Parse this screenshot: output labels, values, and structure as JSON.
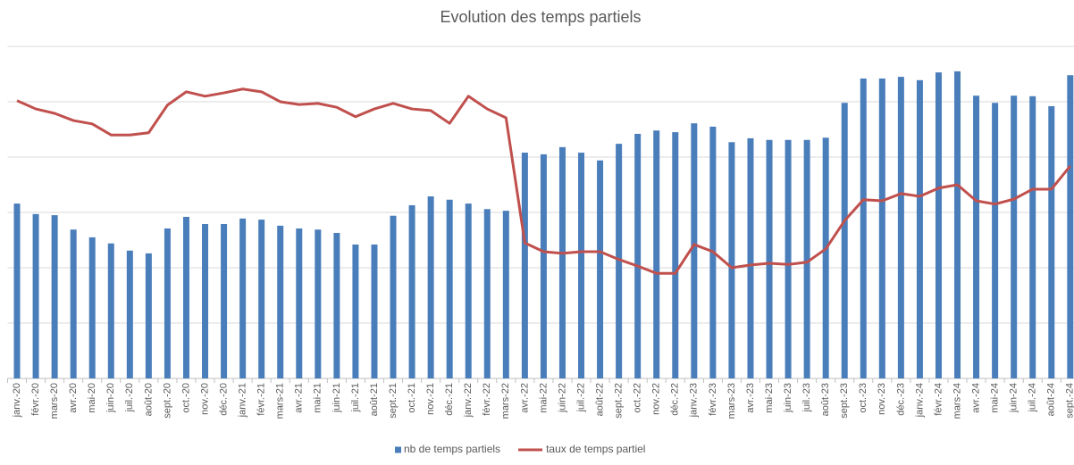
{
  "chart_data": {
    "type": "bar_line",
    "title": "Evolution des temps partiels",
    "categories": [
      "janv.-20",
      "févr.-20",
      "mars-20",
      "avr.-20",
      "mai-20",
      "juin-20",
      "juil.-20",
      "août-20",
      "sept.-20",
      "oct.-20",
      "nov.-20",
      "déc.-20",
      "janv.-21",
      "févr.-21",
      "mars-21",
      "avr.-21",
      "mai-21",
      "juin-21",
      "juil.-21",
      "août-21",
      "sept.-21",
      "oct.-21",
      "nov.-21",
      "déc.-21",
      "janv.-22",
      "févr.-22",
      "mars-22",
      "avr.-22",
      "mai-22",
      "juin-22",
      "juil.-22",
      "août-22",
      "sept.-22",
      "oct.-22",
      "nov.-22",
      "déc.-22",
      "janv.-23",
      "févr.-23",
      "mars-23",
      "avr.-23",
      "mai-23",
      "juin-23",
      "juil.-23",
      "août-23",
      "sept.-23",
      "oct.-23",
      "nov.-23",
      "déc.-23",
      "janv.-24",
      "févr.-24",
      "mars-24",
      "avr.-24",
      "mai-24",
      "juin-24",
      "juil.-24",
      "août-24",
      "sept.-24"
    ],
    "series": [
      {
        "name": "nb de temps partiels",
        "type": "bar",
        "color": "#4a7ebb",
        "values": [
          3.16,
          2.97,
          2.95,
          2.69,
          2.55,
          2.44,
          2.31,
          2.26,
          2.71,
          2.92,
          2.79,
          2.79,
          2.89,
          2.87,
          2.76,
          2.71,
          2.69,
          2.63,
          2.42,
          2.42,
          2.94,
          3.13,
          3.29,
          3.23,
          3.16,
          3.06,
          3.03,
          4.08,
          4.05,
          4.18,
          4.08,
          3.94,
          4.24,
          4.42,
          4.48,
          4.45,
          4.61,
          4.55,
          4.27,
          4.34,
          4.31,
          4.31,
          4.31,
          4.35,
          4.98,
          5.42,
          5.42,
          5.45,
          5.39,
          5.53,
          5.55,
          5.11,
          4.98,
          5.11,
          5.1,
          4.92,
          5.48
        ]
      },
      {
        "name": "taux de temps partiel",
        "type": "line",
        "color": "#c0504d",
        "values": [
          5.02,
          4.87,
          4.79,
          4.66,
          4.6,
          4.4,
          4.4,
          4.44,
          4.94,
          5.18,
          5.1,
          5.16,
          5.23,
          5.18,
          5.0,
          4.95,
          4.97,
          4.9,
          4.73,
          4.87,
          4.97,
          4.87,
          4.84,
          4.61,
          5.1,
          4.87,
          4.71,
          2.45,
          2.29,
          2.26,
          2.29,
          2.29,
          2.15,
          2.03,
          1.9,
          1.9,
          2.42,
          2.29,
          2.0,
          2.05,
          2.08,
          2.06,
          2.1,
          2.34,
          2.85,
          3.23,
          3.21,
          3.34,
          3.29,
          3.44,
          3.5,
          3.21,
          3.15,
          3.24,
          3.42,
          3.42,
          3.84
        ]
      }
    ],
    "ylim": [
      0,
      6
    ],
    "yticks": [
      0,
      1,
      2,
      3,
      4,
      5,
      6
    ],
    "show_ytick_labels": false,
    "grid": true,
    "legend": "bottom"
  }
}
